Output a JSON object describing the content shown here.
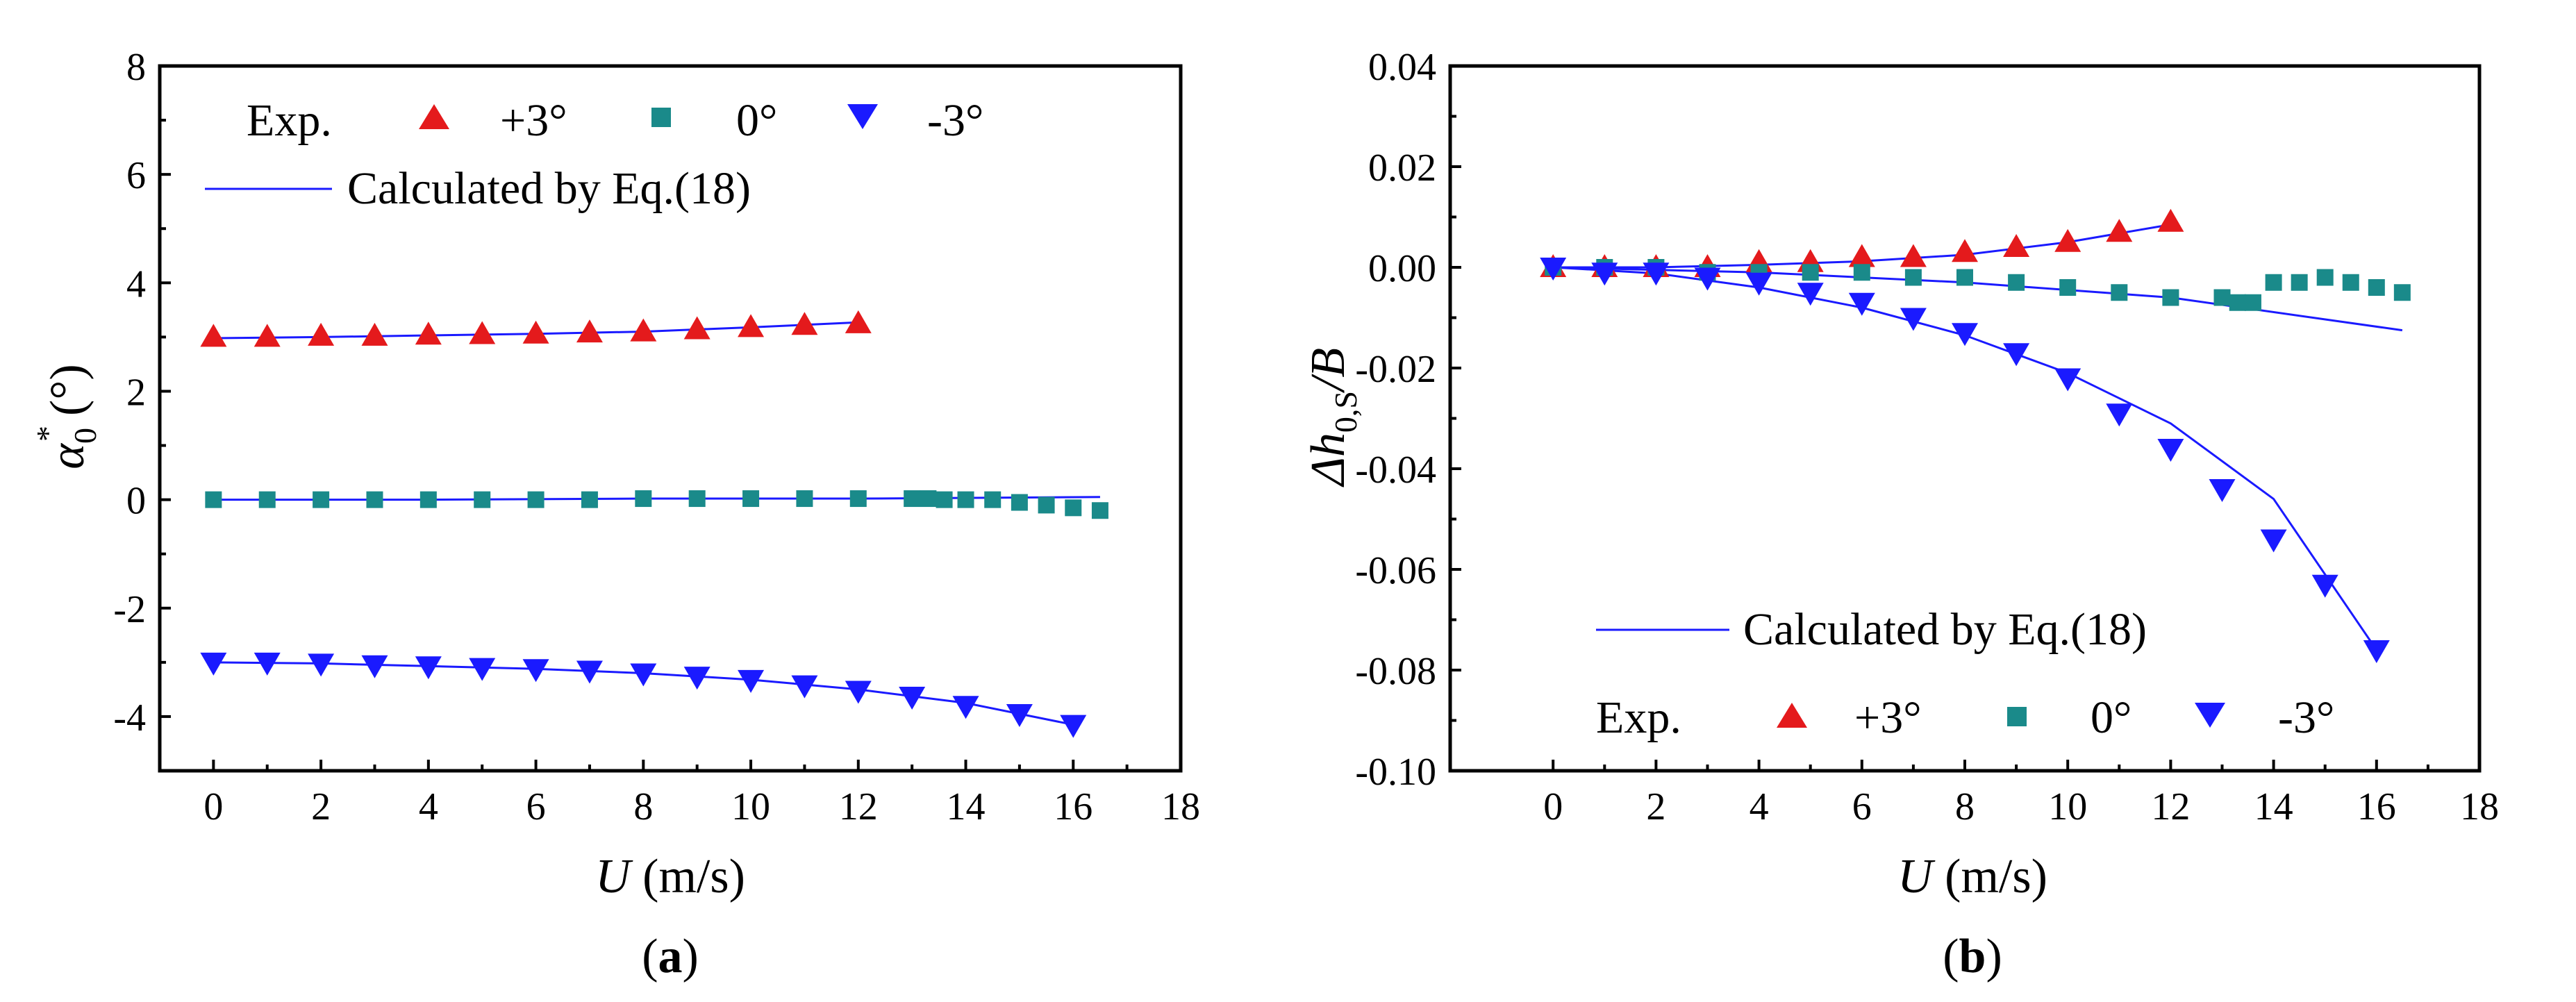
{
  "colors": {
    "plus3": "#e41a1c",
    "zero": "#1a8a8a",
    "minus3": "#1a1aff",
    "fit": "#1a1aff"
  },
  "panels": [
    {
      "caption": "(a)",
      "caption_bold": "a",
      "xlabel": "U (m/s)",
      "ylabel_symbol": "α",
      "ylabel_sub": "0",
      "ylabel_sup": "*",
      "ylabel_unit": "(°)",
      "legend": {
        "exp": "Exp.",
        "plus3": "+3°",
        "zero": "0°",
        "minus3": "-3°",
        "fit": "Calculated by Eq.(18)"
      }
    },
    {
      "caption": "(b)",
      "caption_bold": "b",
      "xlabel": "U (m/s)",
      "ylabel_symbol": "Δh",
      "ylabel_sub": "0,S",
      "ylabel_tail": "/B",
      "legend": {
        "exp": "Exp.",
        "plus3": "+3°",
        "zero": "0°",
        "minus3": "-3°",
        "fit": "Calculated by Eq.(18)"
      }
    }
  ],
  "chart_data": [
    {
      "type": "scatter",
      "xlim": [
        -1,
        18
      ],
      "ylim": [
        -5,
        8
      ],
      "xticks": [
        "0",
        "2",
        "4",
        "6",
        "8",
        "10",
        "12",
        "14",
        "16",
        "18"
      ],
      "yticks": [
        "-4",
        "-2",
        "0",
        "2",
        "4",
        "6",
        "8"
      ],
      "xtick_values": [
        0,
        2,
        4,
        6,
        8,
        10,
        12,
        14,
        16,
        18
      ],
      "ytick_values": [
        -4,
        -2,
        0,
        2,
        4,
        6,
        8
      ],
      "legend_position": "top-left",
      "series": [
        {
          "name": "+3°",
          "marker": "triangle-up",
          "x": [
            0,
            1,
            2,
            3,
            4,
            5,
            6,
            7,
            8,
            9,
            10,
            11,
            12
          ],
          "y": [
            3.0,
            3.0,
            3.02,
            3.02,
            3.04,
            3.05,
            3.06,
            3.08,
            3.1,
            3.14,
            3.18,
            3.22,
            3.25
          ]
        },
        {
          "name": "0°",
          "marker": "square",
          "x": [
            0,
            1,
            2,
            3,
            4,
            5,
            6,
            7,
            8,
            9,
            10,
            11,
            12,
            13,
            13.3,
            13.6,
            14,
            14.5,
            15,
            15.5,
            16,
            16.5
          ],
          "y": [
            0,
            0,
            0,
            0,
            0,
            0,
            0,
            0,
            0.02,
            0.02,
            0.02,
            0.02,
            0.02,
            0.02,
            0.02,
            0,
            0,
            0,
            -0.05,
            -0.1,
            -0.15,
            -0.2
          ]
        },
        {
          "name": "-3°",
          "marker": "triangle-down",
          "x": [
            0,
            1,
            2,
            3,
            4,
            5,
            6,
            7,
            8,
            9,
            10,
            11,
            12,
            13,
            14,
            15,
            16
          ],
          "y": [
            -3.0,
            -3.0,
            -3.02,
            -3.05,
            -3.07,
            -3.1,
            -3.12,
            -3.15,
            -3.2,
            -3.26,
            -3.32,
            -3.42,
            -3.52,
            -3.63,
            -3.8,
            -3.95,
            -4.15
          ]
        }
      ],
      "fits": [
        {
          "name": "+3°",
          "x": [
            0,
            2,
            4,
            6,
            8,
            10,
            12
          ],
          "y": [
            2.98,
            3.0,
            3.03,
            3.06,
            3.1,
            3.18,
            3.27
          ]
        },
        {
          "name": "0°",
          "x": [
            0,
            4,
            8,
            12,
            16.5
          ],
          "y": [
            0,
            0,
            0.02,
            0.02,
            0.05
          ]
        },
        {
          "name": "-3°",
          "x": [
            0,
            2,
            4,
            6,
            8,
            10,
            12,
            14,
            16
          ],
          "y": [
            -3.0,
            -3.02,
            -3.07,
            -3.12,
            -3.2,
            -3.32,
            -3.5,
            -3.75,
            -4.15
          ]
        }
      ]
    },
    {
      "type": "scatter",
      "xlim": [
        -2,
        18
      ],
      "ylim": [
        -0.1,
        0.04
      ],
      "xticks": [
        "0",
        "2",
        "4",
        "6",
        "8",
        "10",
        "12",
        "14",
        "16",
        "18"
      ],
      "yticks": [
        "-0.10",
        "-0.08",
        "-0.06",
        "-0.04",
        "-0.02",
        "0.00",
        "0.02",
        "0.04"
      ],
      "xtick_values": [
        0,
        2,
        4,
        6,
        8,
        10,
        12,
        14,
        16,
        18
      ],
      "ytick_values": [
        -0.1,
        -0.08,
        -0.06,
        -0.04,
        -0.02,
        0,
        0.02,
        0.04
      ],
      "legend_position": "bottom-left",
      "series": [
        {
          "name": "+3°",
          "marker": "triangle-up",
          "x": [
            0,
            1,
            2,
            3,
            4,
            5,
            6,
            7,
            8,
            9,
            10,
            11,
            12
          ],
          "y": [
            0,
            0,
            0,
            0,
            0.001,
            0.001,
            0.002,
            0.002,
            0.003,
            0.004,
            0.005,
            0.007,
            0.009
          ]
        },
        {
          "name": "0°",
          "marker": "square",
          "x": [
            0,
            1,
            2,
            3,
            4,
            5,
            6,
            7,
            8,
            9,
            10,
            11,
            12,
            13,
            13.3,
            13.6,
            14,
            14.5,
            15,
            15.5,
            16,
            16.5
          ],
          "y": [
            0,
            0,
            0,
            -0.001,
            -0.001,
            -0.001,
            -0.001,
            -0.002,
            -0.002,
            -0.003,
            -0.004,
            -0.005,
            -0.006,
            -0.006,
            -0.007,
            -0.007,
            -0.003,
            -0.003,
            -0.002,
            -0.003,
            -0.004,
            -0.005
          ]
        },
        {
          "name": "-3°",
          "marker": "triangle-down",
          "x": [
            0,
            1,
            2,
            3,
            4,
            5,
            6,
            7,
            8,
            9,
            10,
            11,
            12,
            13,
            14,
            15,
            16
          ],
          "y": [
            0,
            -0.001,
            -0.001,
            -0.002,
            -0.003,
            -0.005,
            -0.007,
            -0.01,
            -0.013,
            -0.017,
            -0.022,
            -0.029,
            -0.036,
            -0.044,
            -0.054,
            -0.063,
            -0.076
          ]
        }
      ],
      "fits": [
        {
          "name": "+3°",
          "x": [
            0,
            2,
            4,
            6,
            8,
            10,
            12
          ],
          "y": [
            0,
            0,
            0.0005,
            0.0012,
            0.0025,
            0.005,
            0.0085
          ]
        },
        {
          "name": "0°",
          "x": [
            0,
            4,
            8,
            12,
            16.5
          ],
          "y": [
            0,
            -0.001,
            -0.003,
            -0.006,
            -0.0125
          ]
        },
        {
          "name": "-3°",
          "x": [
            0,
            2,
            4,
            6,
            8,
            10,
            12,
            14,
            16
          ],
          "y": [
            0,
            -0.0012,
            -0.004,
            -0.008,
            -0.0135,
            -0.021,
            -0.031,
            -0.046,
            -0.076
          ]
        }
      ]
    }
  ]
}
